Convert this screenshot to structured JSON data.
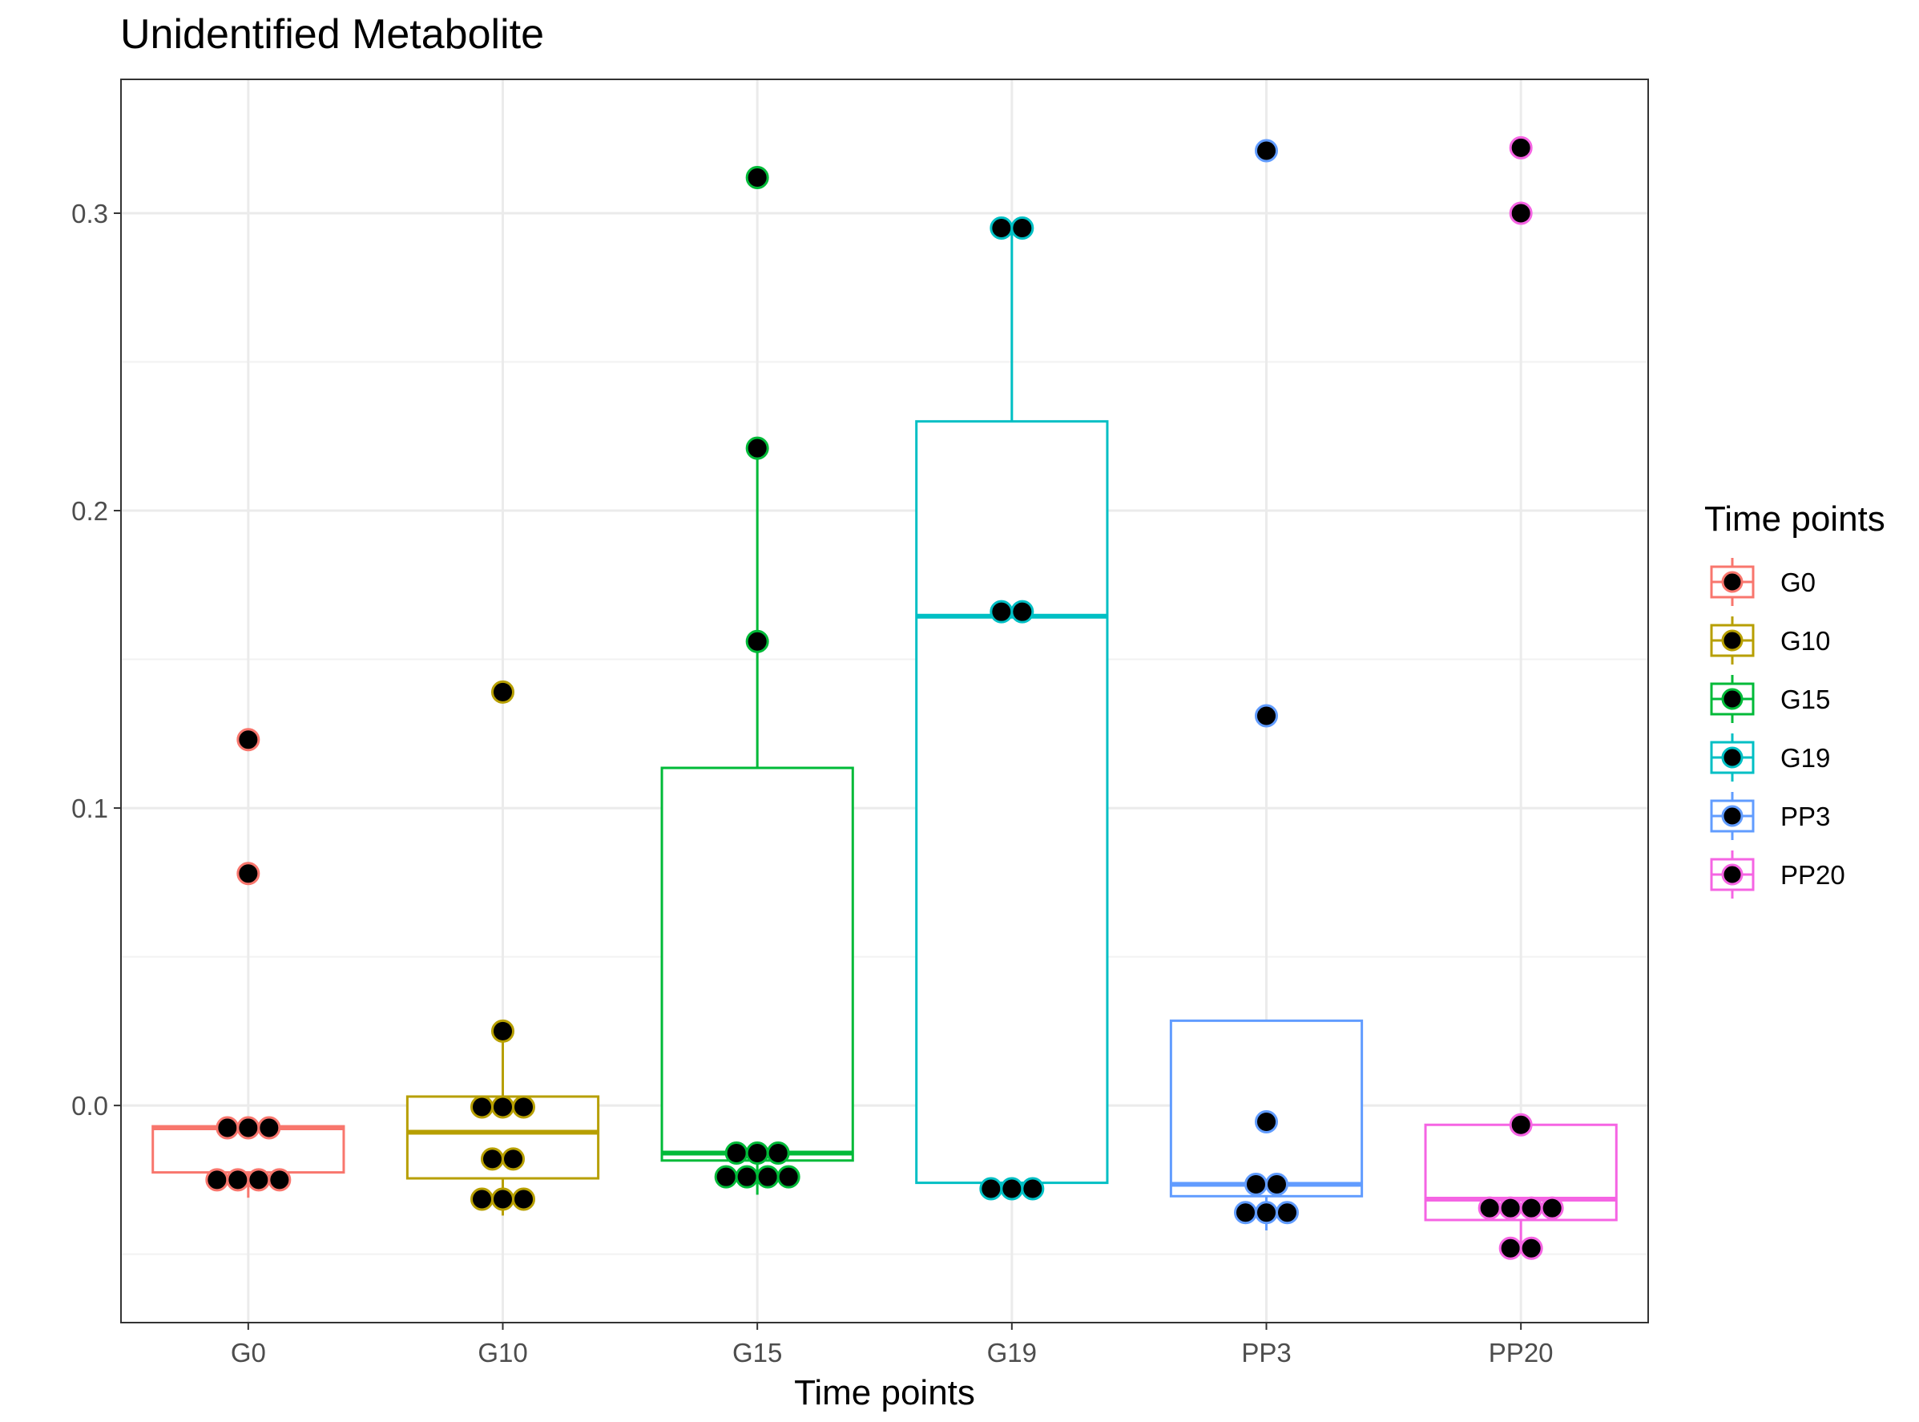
{
  "chart_data": {
    "type": "boxplot",
    "title": "Unidentified Metabolite",
    "xlabel": "Time points",
    "ylabel": "",
    "ylim": [
      -0.073,
      0.345
    ],
    "yticks": [
      0.0,
      0.1,
      0.2,
      0.3
    ],
    "ytick_labels": [
      "0.0",
      "0.1",
      "0.2",
      "0.3"
    ],
    "grid": true,
    "legend": {
      "title": "Time points",
      "placement": "right",
      "entries": [
        "G0",
        "G10",
        "G15",
        "G19",
        "PP3",
        "PP20"
      ]
    },
    "categories": [
      "G0",
      "G10",
      "G15",
      "G19",
      "PP3",
      "PP20"
    ],
    "colors": [
      "#F8766D",
      "#B79F00",
      "#00BA38",
      "#00BFC4",
      "#619CFF",
      "#F564E3"
    ],
    "point_color": "#000000",
    "series": [
      {
        "category": "G0",
        "box": {
          "q1": -0.0225,
          "median": -0.0075,
          "q3": -0.007,
          "whisker_low": -0.031,
          "whisker_high": -0.007
        },
        "points": [
          0.123,
          0.078,
          -0.0075,
          -0.0075,
          -0.0075,
          -0.025,
          -0.025,
          -0.025,
          -0.025
        ]
      },
      {
        "category": "G10",
        "box": {
          "q1": -0.0245,
          "median": -0.009,
          "q3": 0.003,
          "whisker_low": -0.037,
          "whisker_high": 0.025
        },
        "points": [
          0.139,
          0.025,
          -0.0005,
          -0.0005,
          -0.0005,
          -0.018,
          -0.018,
          -0.0315,
          -0.0315,
          -0.0315
        ]
      },
      {
        "category": "G15",
        "box": {
          "q1": -0.0185,
          "median": -0.016,
          "q3": 0.1135,
          "whisker_low": -0.03,
          "whisker_high": 0.221
        },
        "points": [
          0.312,
          0.221,
          0.156,
          -0.016,
          -0.016,
          -0.016,
          -0.024,
          -0.024,
          -0.024,
          -0.024
        ]
      },
      {
        "category": "G19",
        "box": {
          "q1": -0.026,
          "median": 0.1645,
          "q3": 0.23,
          "whisker_low": -0.028,
          "whisker_high": 0.295
        },
        "points": [
          0.295,
          0.295,
          0.166,
          0.166,
          -0.028,
          -0.028,
          -0.028
        ]
      },
      {
        "category": "PP3",
        "box": {
          "q1": -0.0305,
          "median": -0.0265,
          "q3": 0.0285,
          "whisker_low": -0.042,
          "whisker_high": 0.0285
        },
        "points": [
          0.321,
          0.131,
          -0.0055,
          -0.0265,
          -0.0265,
          -0.036,
          -0.036,
          -0.036
        ]
      },
      {
        "category": "PP20",
        "box": {
          "q1": -0.0385,
          "median": -0.0315,
          "q3": -0.0065,
          "whisker_low": -0.048,
          "whisker_high": -0.0065
        },
        "points": [
          0.322,
          0.3,
          -0.0065,
          -0.0345,
          -0.0345,
          -0.0345,
          -0.0345,
          -0.048,
          -0.048
        ]
      }
    ]
  }
}
